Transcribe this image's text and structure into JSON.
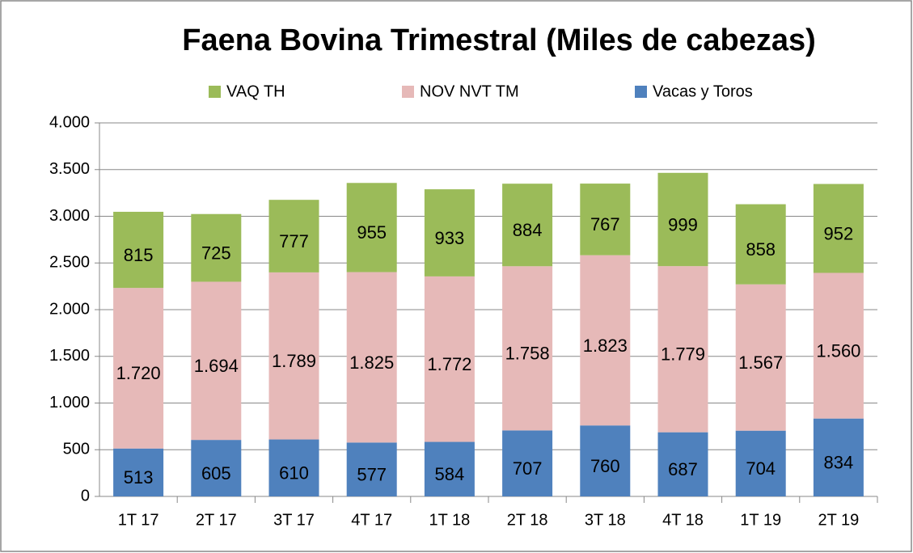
{
  "chart_data": {
    "type": "stacked-bar",
    "title": "Faena Bovina Trimestral (Miles de cabezas)",
    "categories": [
      "1T 17",
      "2T 17",
      "3T 17",
      "4T 17",
      "1T 18",
      "2T 18",
      "3T 18",
      "4T 18",
      "1T 19",
      "2T 19"
    ],
    "series": [
      {
        "name": "Vacas y Toros",
        "color": "#4f81bd",
        "values": [
          513,
          605,
          610,
          577,
          584,
          707,
          760,
          687,
          704,
          834
        ]
      },
      {
        "name": "NOV NVT TM",
        "color": "#e6b9b8",
        "values": [
          1720,
          1694,
          1789,
          1825,
          1772,
          1758,
          1823,
          1779,
          1567,
          1560
        ],
        "value_labels": [
          "1.720",
          "1.694",
          "1.789",
          "1.825",
          "1.772",
          "1.758",
          "1.823",
          "1.779",
          "1.567",
          "1.560"
        ]
      },
      {
        "name": "VAQ TH",
        "color": "#9bbb59",
        "values": [
          815,
          725,
          777,
          955,
          933,
          884,
          767,
          999,
          858,
          952
        ]
      }
    ],
    "ylim": [
      0,
      4000
    ],
    "yticks": [
      0,
      500,
      {
        "value": 1000,
        "label": "1.000"
      },
      {
        "value": 1500,
        "label": "1.500"
      },
      {
        "value": 2000,
        "label": "2.000"
      },
      {
        "value": 2500,
        "label": "2.500"
      },
      {
        "value": 3000,
        "label": "3.000"
      },
      {
        "value": 3500,
        "label": "3.500"
      },
      {
        "value": 4000,
        "label": "4.000"
      }
    ],
    "grid": true
  }
}
